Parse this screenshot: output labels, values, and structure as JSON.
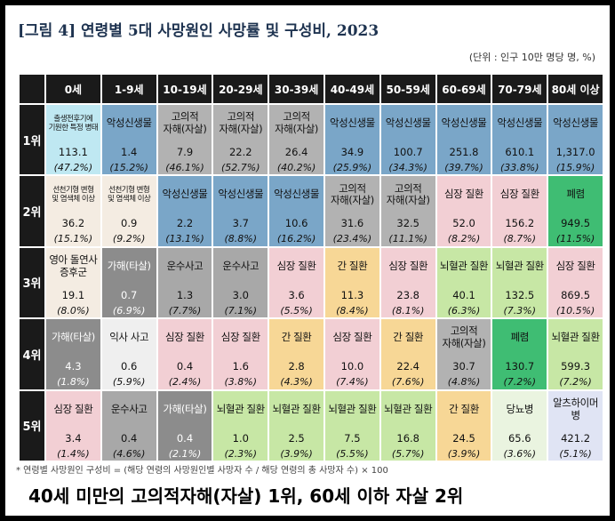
{
  "title": "[그림 4] 연령별 5대 사망원인 사망률 및 구성비, 2023",
  "unit": "(단위 : 인구 10만 명당 명, %)",
  "footnote": "* 연령별 사망원인 구성비 = (해당 연령의 사망원인별 사망자 수 / 해당 연령의 총 사망자 수) × 100",
  "headline": "40세 미만의 고의적자해(자살) 1위, 60세 이하 자살 2위",
  "colors": {
    "header_bg": "#1a1a1a",
    "cancer": "#7aa6c8",
    "pneumonia": "#3fbd73",
    "suicide": "#b2b2b2",
    "heart": "#f2cfd4",
    "cerebrovascular": "#c7e7a5",
    "liver": "#f7d796",
    "perinatal": "#bfe8f2",
    "congenital": "#f4ece2",
    "sids": "#f4ece2",
    "assault": "#8c8c8c",
    "transport": "#a8a8a8",
    "accident": "#efefef",
    "diabetes": "#eaf4e0",
    "alzheimer": "#e0e4f4"
  },
  "chart_data": {
    "type": "table",
    "age_groups": [
      "0세",
      "1-9세",
      "10-19세",
      "20-29세",
      "30-39세",
      "40-49세",
      "50-59세",
      "60-69세",
      "70-79세",
      "80세 이상"
    ],
    "ranks": [
      "1위",
      "2위",
      "3위",
      "4위",
      "5위"
    ],
    "cells": [
      [
        {
          "cause": "출생전후기에\n기원한 특정 병태",
          "rate": "113.1",
          "pct": "(47.2%)",
          "cat": "perinatal",
          "small": true
        },
        {
          "cause": "악성신생물",
          "rate": "1.4",
          "pct": "(15.2%)",
          "cat": "cancer"
        },
        {
          "cause": "고의적\n자해(자살)",
          "rate": "7.9",
          "pct": "(46.1%)",
          "cat": "suicide"
        },
        {
          "cause": "고의적\n자해(자살)",
          "rate": "22.2",
          "pct": "(52.7%)",
          "cat": "suicide"
        },
        {
          "cause": "고의적\n자해(자살)",
          "rate": "26.4",
          "pct": "(40.2%)",
          "cat": "suicide"
        },
        {
          "cause": "악성신생물",
          "rate": "34.9",
          "pct": "(25.9%)",
          "cat": "cancer"
        },
        {
          "cause": "악성신생물",
          "rate": "100.7",
          "pct": "(34.3%)",
          "cat": "cancer"
        },
        {
          "cause": "악성신생물",
          "rate": "251.8",
          "pct": "(39.7%)",
          "cat": "cancer"
        },
        {
          "cause": "악성신생물",
          "rate": "610.1",
          "pct": "(33.8%)",
          "cat": "cancer"
        },
        {
          "cause": "악성신생물",
          "rate": "1,317.0",
          "pct": "(15.9%)",
          "cat": "cancer"
        }
      ],
      [
        {
          "cause": "선천기형 변형\n및 염색체 이상",
          "rate": "36.2",
          "pct": "(15.1%)",
          "cat": "congenital",
          "small": true
        },
        {
          "cause": "선천기형 변형\n및 염색체 이상",
          "rate": "0.9",
          "pct": "(9.2%)",
          "cat": "congenital",
          "small": true
        },
        {
          "cause": "악성신생물",
          "rate": "2.2",
          "pct": "(13.1%)",
          "cat": "cancer"
        },
        {
          "cause": "악성신생물",
          "rate": "3.7",
          "pct": "(8.8%)",
          "cat": "cancer"
        },
        {
          "cause": "악성신생물",
          "rate": "10.6",
          "pct": "(16.2%)",
          "cat": "cancer"
        },
        {
          "cause": "고의적\n자해(자살)",
          "rate": "31.6",
          "pct": "(23.4%)",
          "cat": "suicide"
        },
        {
          "cause": "고의적\n자해(자살)",
          "rate": "32.5",
          "pct": "(11.1%)",
          "cat": "suicide"
        },
        {
          "cause": "심장 질환",
          "rate": "52.0",
          "pct": "(8.2%)",
          "cat": "heart"
        },
        {
          "cause": "심장 질환",
          "rate": "156.2",
          "pct": "(8.7%)",
          "cat": "heart"
        },
        {
          "cause": "폐렴",
          "rate": "949.5",
          "pct": "(11.5%)",
          "cat": "pneumonia"
        }
      ],
      [
        {
          "cause": "영아 돌연사\n증후군",
          "rate": "19.1",
          "pct": "(8.0%)",
          "cat": "sids"
        },
        {
          "cause": "가해(타살)",
          "rate": "0.7",
          "pct": "(6.9%)",
          "cat": "assault"
        },
        {
          "cause": "운수사고",
          "rate": "1.3",
          "pct": "(7.7%)",
          "cat": "transport"
        },
        {
          "cause": "운수사고",
          "rate": "3.0",
          "pct": "(7.1%)",
          "cat": "transport"
        },
        {
          "cause": "심장 질환",
          "rate": "3.6",
          "pct": "(5.5%)",
          "cat": "heart"
        },
        {
          "cause": "간 질환",
          "rate": "11.3",
          "pct": "(8.4%)",
          "cat": "liver"
        },
        {
          "cause": "심장 질환",
          "rate": "23.8",
          "pct": "(8.1%)",
          "cat": "heart"
        },
        {
          "cause": "뇌혈관 질환",
          "rate": "40.1",
          "pct": "(6.3%)",
          "cat": "cerebrovascular"
        },
        {
          "cause": "뇌혈관 질환",
          "rate": "132.5",
          "pct": "(7.3%)",
          "cat": "cerebrovascular"
        },
        {
          "cause": "심장 질환",
          "rate": "869.5",
          "pct": "(10.5%)",
          "cat": "heart"
        }
      ],
      [
        {
          "cause": "가해(타살)",
          "rate": "4.3",
          "pct": "(1.8%)",
          "cat": "assault"
        },
        {
          "cause": "익사 사고",
          "rate": "0.6",
          "pct": "(5.9%)",
          "cat": "accident"
        },
        {
          "cause": "심장 질환",
          "rate": "0.4",
          "pct": "(2.4%)",
          "cat": "heart"
        },
        {
          "cause": "심장 질환",
          "rate": "1.6",
          "pct": "(3.8%)",
          "cat": "heart"
        },
        {
          "cause": "간 질환",
          "rate": "2.8",
          "pct": "(4.3%)",
          "cat": "liver"
        },
        {
          "cause": "심장 질환",
          "rate": "10.0",
          "pct": "(7.4%)",
          "cat": "heart"
        },
        {
          "cause": "간 질환",
          "rate": "22.4",
          "pct": "(7.6%)",
          "cat": "liver"
        },
        {
          "cause": "고의적\n자해(자살)",
          "rate": "30.7",
          "pct": "(4.8%)",
          "cat": "suicide"
        },
        {
          "cause": "폐렴",
          "rate": "130.7",
          "pct": "(7.2%)",
          "cat": "pneumonia"
        },
        {
          "cause": "뇌혈관 질환",
          "rate": "599.3",
          "pct": "(7.2%)",
          "cat": "cerebrovascular"
        }
      ],
      [
        {
          "cause": "심장 질환",
          "rate": "3.4",
          "pct": "(1.4%)",
          "cat": "heart"
        },
        {
          "cause": "운수사고",
          "rate": "0.4",
          "pct": "(4.6%)",
          "cat": "transport"
        },
        {
          "cause": "가해(타살)",
          "rate": "0.4",
          "pct": "(2.1%)",
          "cat": "assault"
        },
        {
          "cause": "뇌혈관 질환",
          "rate": "1.0",
          "pct": "(2.3%)",
          "cat": "cerebrovascular"
        },
        {
          "cause": "뇌혈관 질환",
          "rate": "2.5",
          "pct": "(3.9%)",
          "cat": "cerebrovascular"
        },
        {
          "cause": "뇌혈관 질환",
          "rate": "7.5",
          "pct": "(5.5%)",
          "cat": "cerebrovascular"
        },
        {
          "cause": "뇌혈관 질환",
          "rate": "16.8",
          "pct": "(5.7%)",
          "cat": "cerebrovascular"
        },
        {
          "cause": "간 질환",
          "rate": "24.5",
          "pct": "(3.9%)",
          "cat": "liver"
        },
        {
          "cause": "당뇨병",
          "rate": "65.6",
          "pct": "(3.6%)",
          "cat": "diabetes"
        },
        {
          "cause": "알츠하이머병",
          "rate": "421.2",
          "pct": "(5.1%)",
          "cat": "alzheimer"
        }
      ]
    ]
  }
}
